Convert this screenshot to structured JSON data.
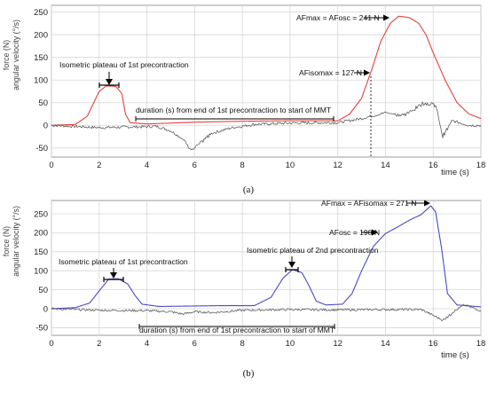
{
  "chart_data": [
    {
      "type": "line",
      "caption": "(a)",
      "xlabel": "time (s)",
      "ylabel_lines": [
        "force (N)",
        "angular velocity (°/s)"
      ],
      "xlim": [
        0,
        18
      ],
      "ylim": [
        -70,
        265
      ],
      "xticks": [
        0,
        2,
        4,
        6,
        8,
        10,
        12,
        14,
        16,
        18
      ],
      "yticks": [
        -50,
        0,
        50,
        100,
        150,
        200,
        250
      ],
      "series": [
        {
          "color": "#e8403a",
          "noise": 0,
          "points": [
            [
              0,
              0
            ],
            [
              1,
              2
            ],
            [
              1.5,
              20
            ],
            [
              2,
              75
            ],
            [
              2.3,
              87
            ],
            [
              2.7,
              86
            ],
            [
              2.95,
              70
            ],
            [
              3.1,
              25
            ],
            [
              3.3,
              6
            ],
            [
              4,
              3
            ],
            [
              6,
              7
            ],
            [
              8,
              9
            ],
            [
              10,
              10
            ],
            [
              12,
              10
            ],
            [
              12.5,
              25
            ],
            [
              13,
              60
            ],
            [
              13.45,
              127
            ],
            [
              13.8,
              185
            ],
            [
              14.2,
              225
            ],
            [
              14.55,
              241
            ],
            [
              15,
              238
            ],
            [
              15.4,
              225
            ],
            [
              15.7,
              200
            ],
            [
              16,
              160
            ],
            [
              16.5,
              100
            ],
            [
              17,
              50
            ],
            [
              17.5,
              25
            ],
            [
              18,
              15
            ]
          ]
        },
        {
          "color": "#555555",
          "noise": 3,
          "points": [
            [
              0,
              0
            ],
            [
              2,
              -5
            ],
            [
              4,
              -3
            ],
            [
              4.4,
              -2
            ],
            [
              5,
              -12
            ],
            [
              5.5,
              -30
            ],
            [
              5.9,
              -55
            ],
            [
              6.2,
              -42
            ],
            [
              6.7,
              -18
            ],
            [
              7.5,
              -6
            ],
            [
              8.5,
              2
            ],
            [
              10,
              5
            ],
            [
              12,
              6
            ],
            [
              13,
              15
            ],
            [
              14,
              28
            ],
            [
              14.8,
              22
            ],
            [
              15.6,
              50
            ],
            [
              16.1,
              45
            ],
            [
              16.4,
              -25
            ],
            [
              16.8,
              10
            ],
            [
              17.5,
              0
            ],
            [
              18,
              0
            ]
          ]
        }
      ],
      "annotations": [
        {
          "text": "Isometric plateau of 1st precontraction"
        },
        {
          "text": "duration (s) from end of 1st precontraction to start of MMT"
        },
        {
          "text": "AFmax = AFosc = 241 N"
        },
        {
          "text": "AFisomax = 127 N"
        }
      ]
    },
    {
      "type": "line",
      "caption": "(b)",
      "xlabel": "time (s)",
      "ylabel_lines": [
        "force (N)",
        "angular velocity (°/s)"
      ],
      "xlim": [
        0,
        18
      ],
      "ylim": [
        -70,
        285
      ],
      "xticks": [
        0,
        2,
        4,
        6,
        8,
        10,
        12,
        14,
        16,
        18
      ],
      "yticks": [
        -50,
        0,
        50,
        100,
        150,
        200,
        250
      ],
      "series": [
        {
          "color": "#4a4ac8",
          "noise": 0,
          "points": [
            [
              0,
              0
            ],
            [
              1,
              3
            ],
            [
              1.6,
              15
            ],
            [
              2.1,
              55
            ],
            [
              2.4,
              78
            ],
            [
              2.8,
              79
            ],
            [
              3.2,
              65
            ],
            [
              3.5,
              35
            ],
            [
              3.8,
              12
            ],
            [
              4.5,
              6
            ],
            [
              7,
              8
            ],
            [
              8.5,
              8
            ],
            [
              9.2,
              30
            ],
            [
              9.7,
              80
            ],
            [
              10.1,
              103
            ],
            [
              10.5,
              95
            ],
            [
              10.8,
              60
            ],
            [
              11.1,
              20
            ],
            [
              11.5,
              10
            ],
            [
              12.2,
              12
            ],
            [
              12.6,
              40
            ],
            [
              13,
              100
            ],
            [
              13.5,
              165
            ],
            [
              14,
              198
            ],
            [
              14.5,
              215
            ],
            [
              15,
              233
            ],
            [
              15.5,
              248
            ],
            [
              15.9,
              271
            ],
            [
              16.1,
              255
            ],
            [
              16.35,
              160
            ],
            [
              16.6,
              40
            ],
            [
              17,
              10
            ],
            [
              18,
              5
            ]
          ]
        },
        {
          "color": "#555555",
          "noise": 3,
          "points": [
            [
              0,
              0
            ],
            [
              2,
              -4
            ],
            [
              4,
              -5
            ],
            [
              5,
              -8
            ],
            [
              5.5,
              -14
            ],
            [
              6,
              -8
            ],
            [
              6.8,
              -10
            ],
            [
              8,
              -4
            ],
            [
              10,
              -2
            ],
            [
              12,
              -3
            ],
            [
              14,
              -2
            ],
            [
              15.5,
              -2
            ],
            [
              16.4,
              -30
            ],
            [
              16.8,
              -10
            ],
            [
              17.3,
              10
            ],
            [
              18,
              -5
            ]
          ]
        }
      ],
      "annotations": [
        {
          "text": "Isometric plateau of 1st precontraction"
        },
        {
          "text": "Isometric plateau of 2nd precontraction"
        },
        {
          "text": "duration (s) from end of 1st precontraction to start of MMT"
        },
        {
          "text": "AFmax = AFisomax = 271 N"
        },
        {
          "text": "AFosc = 198 N"
        }
      ]
    }
  ]
}
